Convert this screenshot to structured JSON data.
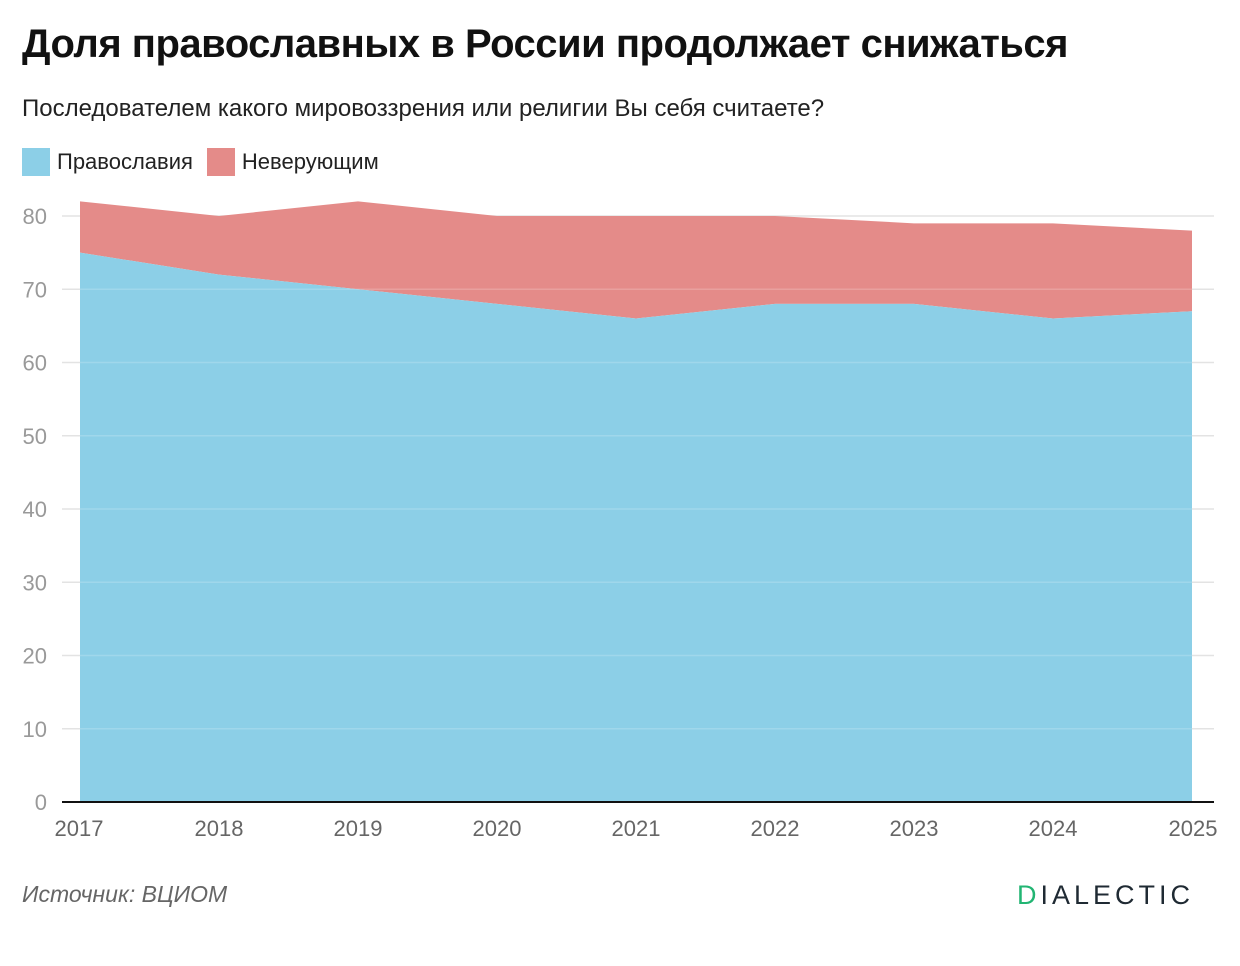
{
  "title": "Доля православных в России продолжает снижаться",
  "subtitle": "Последователем какого мировоззрения или религии Вы себя считаете?",
  "source": "Источник: ВЦИОМ",
  "brand": {
    "first_letter": "D",
    "rest": "IALECTIC"
  },
  "colors": {
    "orthodox": "#8ccfe7",
    "nonbelievers": "#e48b89",
    "grid": "#e3e3e3",
    "axis": "#111111",
    "tick_label": "#999999",
    "brand_accent": "#22b573"
  },
  "chart_data": {
    "type": "area",
    "stacked": true,
    "categories": [
      "2017",
      "2018",
      "2019",
      "2020",
      "2021",
      "2022",
      "2023",
      "2024",
      "2025"
    ],
    "series": [
      {
        "name": "Православия",
        "values": [
          75,
          72,
          70,
          68,
          66,
          68,
          68,
          66,
          67
        ]
      },
      {
        "name": "Неверующим",
        "values": [
          7,
          8,
          12,
          12,
          14,
          12,
          11,
          13,
          11
        ]
      }
    ],
    "yticks": [
      0,
      10,
      20,
      30,
      40,
      50,
      60,
      70,
      80
    ],
    "ylim": [
      0,
      80
    ],
    "grid": true,
    "legend_position": "top-left"
  }
}
